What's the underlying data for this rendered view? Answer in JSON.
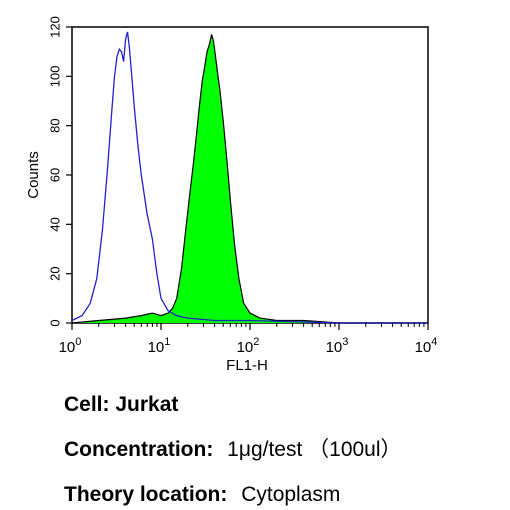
{
  "chart_data": {
    "type": "area",
    "xlabel": "FL1-H",
    "ylabel": "Counts",
    "x_scale": "log",
    "xlim": [
      1,
      10000
    ],
    "ylim": [
      0,
      120
    ],
    "x_ticks": [
      {
        "base": "10",
        "exp": "0"
      },
      {
        "base": "10",
        "exp": "1"
      },
      {
        "base": "10",
        "exp": "2"
      },
      {
        "base": "10",
        "exp": "3"
      },
      {
        "base": "10",
        "exp": "4"
      }
    ],
    "y_ticks": [
      "0",
      "20",
      "40",
      "60",
      "80",
      "100",
      "120"
    ],
    "grid": false,
    "legend": "none",
    "series": [
      {
        "style": "filled",
        "color": "#00ff00",
        "edge_color": "#000000",
        "x": [
          1.0,
          2.0,
          4.0,
          6.0,
          8.0,
          10.0,
          12.0,
          13.5,
          15.0,
          17.0,
          19.0,
          21.0,
          23.0,
          25.0,
          27.0,
          29.0,
          31.0,
          33.0,
          35.0,
          37.0,
          39.0,
          41.0,
          43.0,
          46.0,
          50.0,
          55.0,
          60.0,
          67.0,
          75.0,
          85.0,
          100.0,
          130.0,
          200.0,
          400.0,
          1000.0,
          10000.0
        ],
        "y": [
          0,
          1,
          2,
          3,
          4,
          3,
          4,
          6,
          10,
          22,
          38,
          52,
          64,
          76,
          88,
          98,
          104,
          110,
          113,
          117,
          114,
          108,
          102,
          94,
          82,
          66,
          50,
          32,
          18,
          8,
          4,
          2,
          1,
          1,
          0,
          0
        ]
      },
      {
        "style": "line",
        "color": "#2222cc",
        "x": [
          1.0,
          1.3,
          1.6,
          1.9,
          2.2,
          2.5,
          2.8,
          3.0,
          3.2,
          3.4,
          3.6,
          3.8,
          4.0,
          4.2,
          4.4,
          4.7,
          5.0,
          5.5,
          6.0,
          7.0,
          8.0,
          9.0,
          10.0,
          12.0,
          15.0,
          20.0,
          40.0,
          100.0,
          1000.0,
          10000.0
        ],
        "y": [
          1,
          3,
          8,
          18,
          38,
          62,
          86,
          100,
          108,
          111,
          110,
          106,
          115,
          118,
          112,
          100,
          88,
          72,
          60,
          44,
          34,
          20,
          10,
          5,
          3,
          2,
          1,
          1,
          0,
          0
        ]
      }
    ]
  },
  "caption": {
    "cell_label": "Cell:",
    "cell_value": "Jurkat",
    "concentration_label": "Concentration:",
    "concentration_value": "1μg/test （100ul）",
    "theory_label": "Theory location:",
    "theory_value": "Cytoplasm"
  }
}
